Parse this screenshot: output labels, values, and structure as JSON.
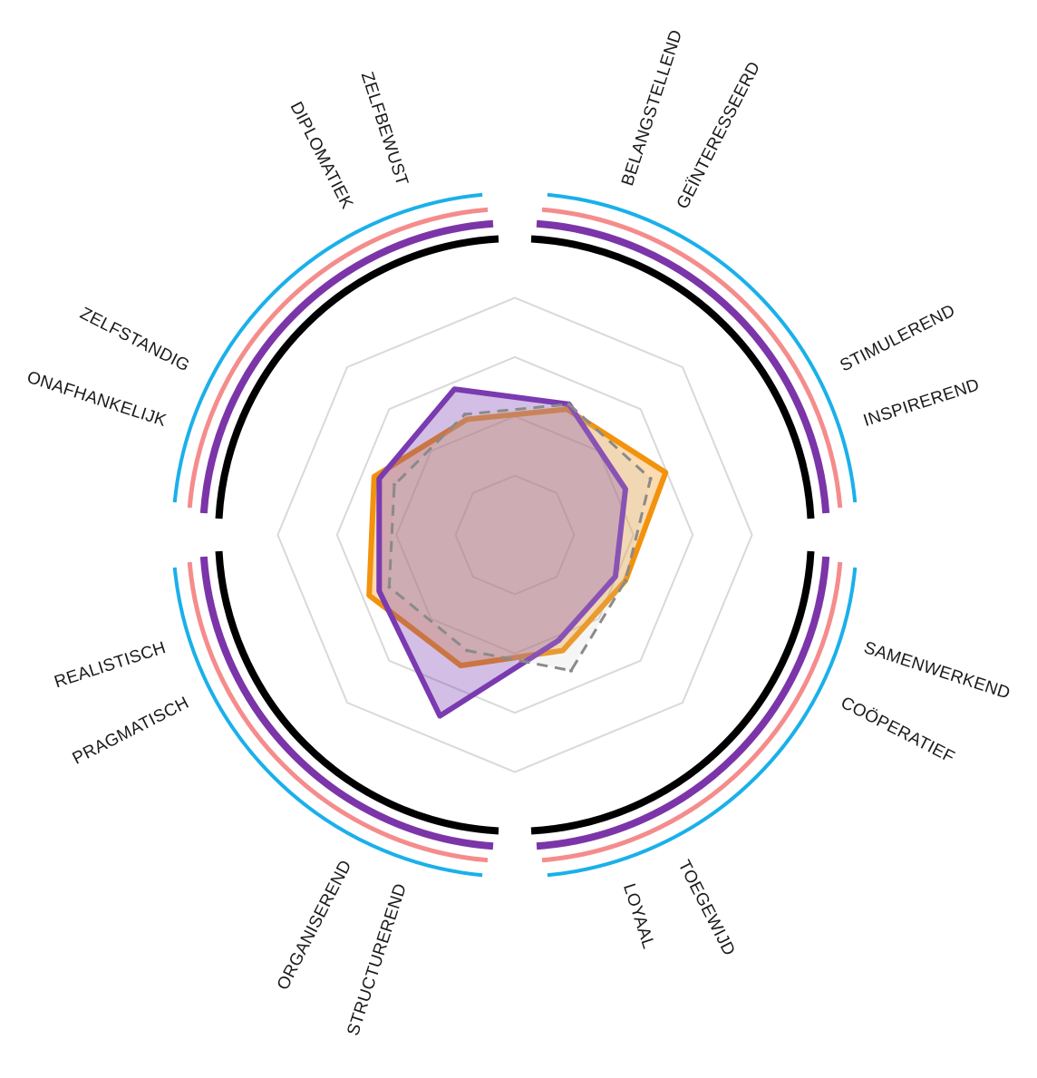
{
  "chart_data": {
    "type": "radar",
    "axis_labels": [
      {
        "line1": "BELANGSTELLEND",
        "line2": "GEÏNTERESSEERD"
      },
      {
        "line1": "STIMULEREND",
        "line2": "INSPIREREND"
      },
      {
        "line1": "SAMENWERKEND",
        "line2": "COÖPERATIEF"
      },
      {
        "line1": "TOEGEWIJD",
        "line2": "LOYAAL"
      },
      {
        "line1": "STRUCTUREREND",
        "line2": "ORGANISEREND"
      },
      {
        "line1": "PRAGMATISCH",
        "line2": "REALISTISCH"
      },
      {
        "line1": "ONAFHANKELIJK",
        "line2": "ZELFSTANDIG"
      },
      {
        "line1": "DIPLOMATIEK",
        "line2": "ZELFBEWUST"
      }
    ],
    "rmax": 5,
    "grid_levels": [
      1,
      2,
      3,
      4
    ],
    "series": [
      {
        "values": [
          2.5,
          3.0,
          2.2,
          2.3,
          2.6,
          2.9,
          2.8,
          2.3
        ],
        "color": "#f2920d",
        "style": "filled"
      },
      {
        "values": [
          2.6,
          2.2,
          2.0,
          2.1,
          3.6,
          2.7,
          2.7,
          2.9
        ],
        "color": "#7a3ab0",
        "style": "filled"
      },
      {
        "values": [
          2.6,
          2.7,
          2.2,
          2.7,
          2.3,
          2.5,
          2.4,
          2.4
        ],
        "color": "#8a8a8a",
        "style": "dashed"
      }
    ],
    "ring_colors": [
      "#000000",
      "#7b35a8",
      "#f58c8c",
      "#1ab0ea"
    ]
  }
}
